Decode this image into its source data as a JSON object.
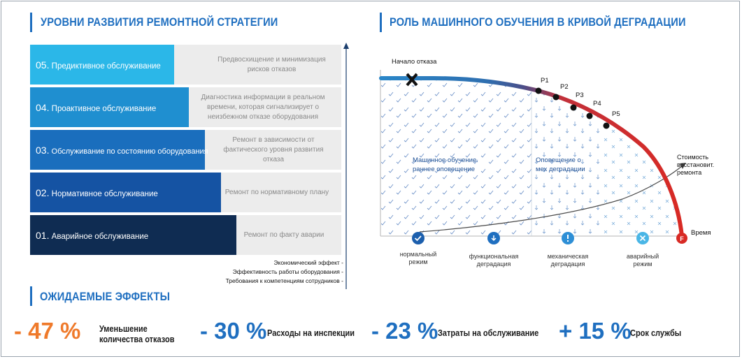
{
  "left_title": "УРОВНИ РАЗВИТИЯ РЕМОНТНОЙ СТРАТЕГИИ",
  "right_title": "РОЛЬ МАШИННОГО ОБУЧЕНИЯ В КРИВОЙ ДЕГРАДАЦИИ",
  "effects_title": "ОЖИДАЕМЫЕ ЭФФЕКТЫ",
  "levels": [
    {
      "num": "05.",
      "label": "Предиктивное обслуживание",
      "desc": "Предвосхищение и минимизация рисков отказов",
      "color": "#2bb7e8"
    },
    {
      "num": "04.",
      "label": "Проактивное обслуживание",
      "desc": "Диагностика информации в реальном времени, которая сигнализирует о неизбежном отказе оборудования",
      "color": "#1f8fd0"
    },
    {
      "num": "03.",
      "label": "Обслуживание по состоянию оборудования",
      "desc": "Ремонт в зависимости от фактического уровня развития отказа",
      "color": "#1a6ebd"
    },
    {
      "num": "02.",
      "label": "Нормативное обслуживание",
      "desc": "Ремонт по нормативному плану",
      "color": "#1553a3"
    },
    {
      "num": "01.",
      "label": "Аварийное обслуживание",
      "desc": "Ремонт по факту аварии",
      "color": "#0f2c52"
    }
  ],
  "legend": [
    "Экономический эффект -",
    "Эффективность работы оборудования -",
    "Требования к компетенциям сотрудников -"
  ],
  "degradation": {
    "start_label": "Начало отказа",
    "points": [
      "P1",
      "P2",
      "P3",
      "P4",
      "P5"
    ],
    "zone_left": "Машинное обучение. раннее оповещение",
    "zone_right": "Оповещение о мех деградации",
    "cost_label": "Стоимость восстановит. ремонта",
    "time_label": "Время",
    "failure_marker": "F",
    "stages": [
      {
        "label": "нормальный режим",
        "icon": "check-icon",
        "color": "#1c5fad"
      },
      {
        "label": "функциональная деградация",
        "icon": "down-arrow-icon",
        "color": "#1f6fc0"
      },
      {
        "label": "механическая деградация",
        "icon": "exclamation-icon",
        "color": "#2e8fd6"
      },
      {
        "label": "аварийный режим",
        "icon": "x-icon",
        "color": "#4ab6e6"
      }
    ]
  },
  "effects": [
    {
      "value": "- 47 %",
      "label": "Уменьшение количества отказов",
      "color": "#ef7a2b"
    },
    {
      "value": "- 30 %",
      "label": "Расходы на инспекции",
      "color": "#1f6fc0"
    },
    {
      "value": "- 23 %",
      "label": "Затраты на обслуживание",
      "color": "#1f6fc0"
    },
    {
      "value": "+ 15 %",
      "label": "Срок службы",
      "color": "#1f6fc0"
    }
  ]
}
